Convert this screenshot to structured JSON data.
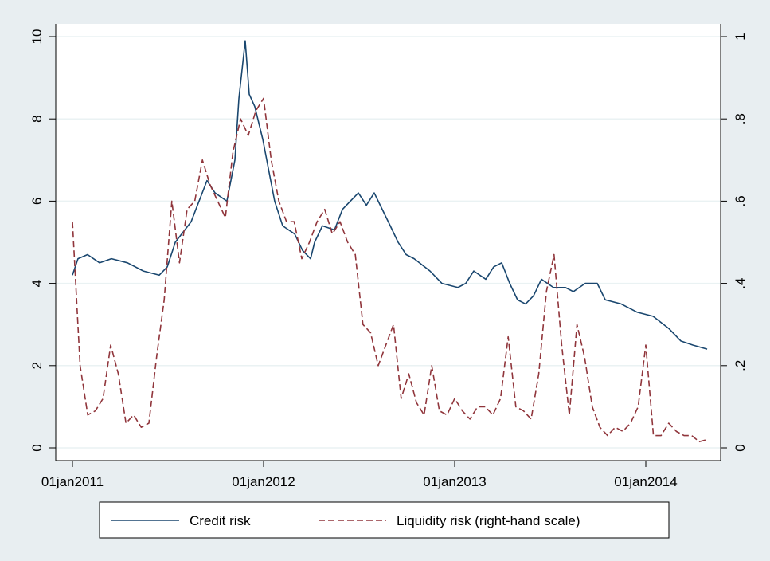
{
  "chart_data": {
    "type": "line",
    "xlim": [
      2010.9125,
      2014.3917
    ],
    "xticks": [
      {
        "value": 2011,
        "label": "01jan2011"
      },
      {
        "value": 2012,
        "label": "01jan2012"
      },
      {
        "value": 2013,
        "label": "01jan2013"
      },
      {
        "value": 2014,
        "label": "01jan2014"
      }
    ],
    "ylim": [
      -0.31,
      10.31
    ],
    "yticks": [
      0,
      2,
      4,
      6,
      8,
      10
    ],
    "y2lim": [
      -0.031,
      1.031
    ],
    "y2ticks": [
      0,
      {
        "value": 0.2,
        "label": ".2"
      },
      {
        "value": 0.4,
        "label": ".4"
      },
      {
        "value": 0.6,
        "label": ".6"
      },
      {
        "value": 0.8,
        "label": ".8"
      },
      1
    ],
    "grid": true,
    "legend": "bottom",
    "series": [
      {
        "name": "Credit risk",
        "color": "#1a476f",
        "dash": false,
        "x": [
          2011.0,
          2011.029,
          2011.079,
          2011.142,
          2011.204,
          2011.288,
          2011.371,
          2011.454,
          2011.496,
          2011.538,
          2011.621,
          2011.704,
          2011.746,
          2011.808,
          2011.85,
          2011.871,
          2011.904,
          2011.925,
          2011.954,
          2011.996,
          2012.058,
          2012.1,
          2012.163,
          2012.204,
          2012.246,
          2012.267,
          2012.308,
          2012.371,
          2012.413,
          2012.454,
          2012.496,
          2012.538,
          2012.579,
          2012.621,
          2012.663,
          2012.704,
          2012.746,
          2012.788,
          2012.871,
          2012.933,
          2013.017,
          2013.058,
          2013.1,
          2013.163,
          2013.204,
          2013.246,
          2013.288,
          2013.329,
          2013.371,
          2013.413,
          2013.454,
          2013.517,
          2013.579,
          2013.621,
          2013.683,
          2013.746,
          2013.788,
          2013.871,
          2013.954,
          2014.038,
          2014.121,
          2014.183,
          2014.246,
          2014.321
        ],
        "values": [
          4.2,
          4.6,
          4.7,
          4.5,
          4.6,
          4.5,
          4.3,
          4.2,
          4.4,
          5.0,
          5.5,
          6.5,
          6.2,
          6.0,
          7.0,
          8.5,
          9.9,
          8.6,
          8.3,
          7.5,
          6.0,
          5.4,
          5.2,
          4.8,
          4.6,
          5.0,
          5.4,
          5.3,
          5.8,
          6.0,
          6.2,
          5.9,
          6.2,
          5.8,
          5.4,
          5.0,
          4.7,
          4.6,
          4.3,
          4.0,
          3.9,
          4.0,
          4.3,
          4.1,
          4.4,
          4.5,
          4.0,
          3.6,
          3.5,
          3.7,
          4.1,
          3.9,
          3.9,
          3.8,
          4.0,
          4.0,
          3.6,
          3.5,
          3.3,
          3.2,
          2.9,
          2.6,
          2.5,
          2.4
        ]
      },
      {
        "name": "Liquidity risk (right-hand scale)",
        "color": "#90353b",
        "dash": true,
        "axis": "y2",
        "x": [
          2011.0,
          2011.04,
          2011.08,
          2011.12,
          2011.16,
          2011.2,
          2011.24,
          2011.28,
          2011.32,
          2011.36,
          2011.4,
          2011.44,
          2011.48,
          2011.52,
          2011.56,
          2011.6,
          2011.64,
          2011.68,
          2011.72,
          2011.76,
          2011.8,
          2011.84,
          2011.88,
          2011.92,
          2011.96,
          2012.0,
          2012.04,
          2012.08,
          2012.12,
          2012.16,
          2012.2,
          2012.24,
          2012.28,
          2012.32,
          2012.36,
          2012.4,
          2012.44,
          2012.48,
          2012.52,
          2012.56,
          2012.6,
          2012.64,
          2012.68,
          2012.72,
          2012.76,
          2012.8,
          2012.84,
          2012.88,
          2012.92,
          2012.96,
          2013.0,
          2013.04,
          2013.08,
          2013.12,
          2013.16,
          2013.2,
          2013.24,
          2013.28,
          2013.32,
          2013.36,
          2013.4,
          2013.44,
          2013.48,
          2013.52,
          2013.56,
          2013.6,
          2013.64,
          2013.68,
          2013.72,
          2013.76,
          2013.8,
          2013.84,
          2013.88,
          2013.92,
          2013.96,
          2014.0,
          2014.04,
          2014.08,
          2014.12,
          2014.16,
          2014.2,
          2014.24,
          2014.28,
          2014.32
        ],
        "values": [
          0.55,
          0.2,
          0.08,
          0.09,
          0.12,
          0.25,
          0.18,
          0.06,
          0.08,
          0.05,
          0.06,
          0.22,
          0.36,
          0.6,
          0.45,
          0.58,
          0.6,
          0.7,
          0.64,
          0.6,
          0.56,
          0.72,
          0.8,
          0.76,
          0.82,
          0.85,
          0.7,
          0.6,
          0.55,
          0.55,
          0.46,
          0.5,
          0.55,
          0.58,
          0.52,
          0.55,
          0.5,
          0.47,
          0.3,
          0.28,
          0.2,
          0.25,
          0.3,
          0.12,
          0.18,
          0.11,
          0.08,
          0.2,
          0.09,
          0.08,
          0.12,
          0.09,
          0.07,
          0.1,
          0.1,
          0.08,
          0.12,
          0.27,
          0.1,
          0.09,
          0.07,
          0.18,
          0.38,
          0.47,
          0.25,
          0.08,
          0.3,
          0.22,
          0.1,
          0.05,
          0.03,
          0.05,
          0.04,
          0.06,
          0.1,
          0.25,
          0.03,
          0.03,
          0.06,
          0.04,
          0.03,
          0.03,
          0.015,
          0.02
        ]
      }
    ]
  }
}
